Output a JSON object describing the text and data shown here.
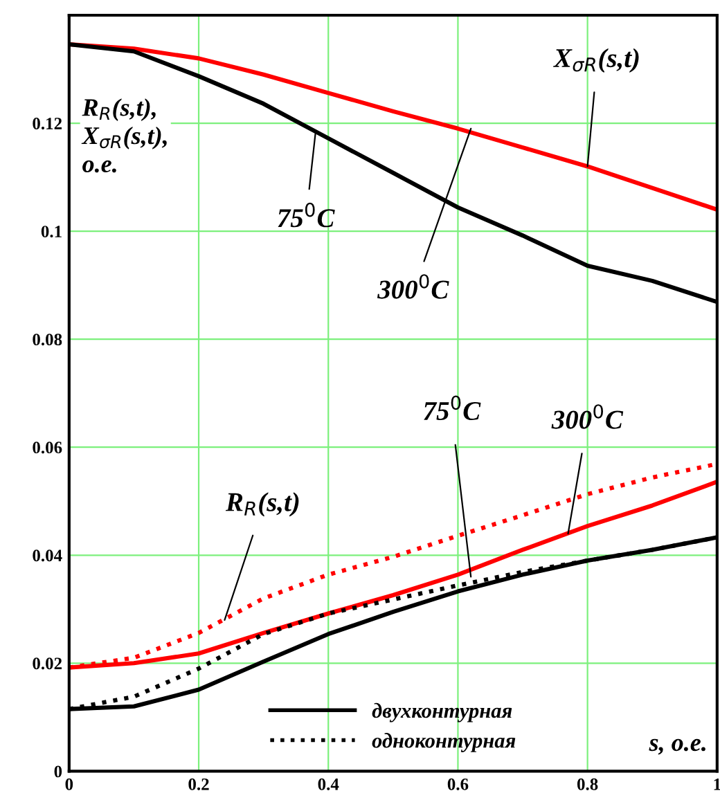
{
  "chart_data": {
    "type": "line",
    "xlabel": "s, о.е.",
    "ylabel": "R$_{R}$(s,t),\nX$_{σR}$(s,t),\nо.е.",
    "x": [
      0,
      0.1,
      0.2,
      0.3,
      0.4,
      0.5,
      0.6,
      0.7,
      0.8,
      0.9,
      1.0
    ],
    "series": [
      {
        "color": "#ff0000",
        "line_style": "solid",
        "values": [
          0.1346,
          0.1338,
          0.132,
          0.129,
          0.1256,
          0.1222,
          0.119,
          0.1155,
          0.112,
          0.108,
          0.104
        ]
      },
      {
        "name": "двухконтурная",
        "color": "#000000",
        "line_style": "solid",
        "values": [
          0.1346,
          0.1333,
          0.1287,
          0.1236,
          0.1172,
          0.1108,
          0.1044,
          0.0992,
          0.0936,
          0.0908,
          0.0869
        ]
      },
      {
        "color": "#ff0000",
        "line_style": "dotted",
        "values": [
          0.0192,
          0.021,
          0.0256,
          0.032,
          0.0364,
          0.0397,
          0.0436,
          0.0474,
          0.0513,
          0.0544,
          0.0569
        ]
      },
      {
        "color": "#ff0000",
        "line_style": "solid",
        "values": [
          0.0192,
          0.02,
          0.0218,
          0.0256,
          0.0292,
          0.0326,
          0.0364,
          0.041,
          0.0454,
          0.0492,
          0.0536
        ]
      },
      {
        "name": "одноконтурная",
        "color": "#000000",
        "line_style": "dotted",
        "values": [
          0.0115,
          0.0138,
          0.019,
          0.0254,
          0.0292,
          0.0318,
          0.0344,
          0.0369,
          0.039,
          0.041,
          0.0433
        ]
      },
      {
        "color": "#000000",
        "line_style": "solid",
        "values": [
          0.0115,
          0.012,
          0.0151,
          0.0203,
          0.0254,
          0.0295,
          0.0333,
          0.0364,
          0.039,
          0.041,
          0.0433
        ]
      }
    ],
    "annotations": [
      {
        "text": "X$_{σR}$(s,t)",
        "x": 0.8,
        "y": 0.112
      },
      {
        "text": "75$^{0}$C",
        "x": 0.38,
        "y": 0.118
      },
      {
        "text": "300$^{0}$C",
        "x": 0.62,
        "y": 0.119
      },
      {
        "text": "R$_{R}$(s,t)",
        "x": 0.24,
        "y": 0.028
      },
      {
        "text": "75$^{0}$C",
        "x": 0.62,
        "y": 0.036
      },
      {
        "text": "300$^{0}$C",
        "x": 0.77,
        "y": 0.044
      }
    ],
    "xlim": [
      0,
      1
    ],
    "ylim": [
      0,
      0.14
    ],
    "xticks": [
      0,
      0.2,
      0.4,
      0.6,
      0.8,
      1
    ],
    "yticks": [
      0,
      0.02,
      0.04,
      0.06,
      0.08,
      0.1,
      0.12
    ],
    "grid": true,
    "legend": "bottom"
  }
}
